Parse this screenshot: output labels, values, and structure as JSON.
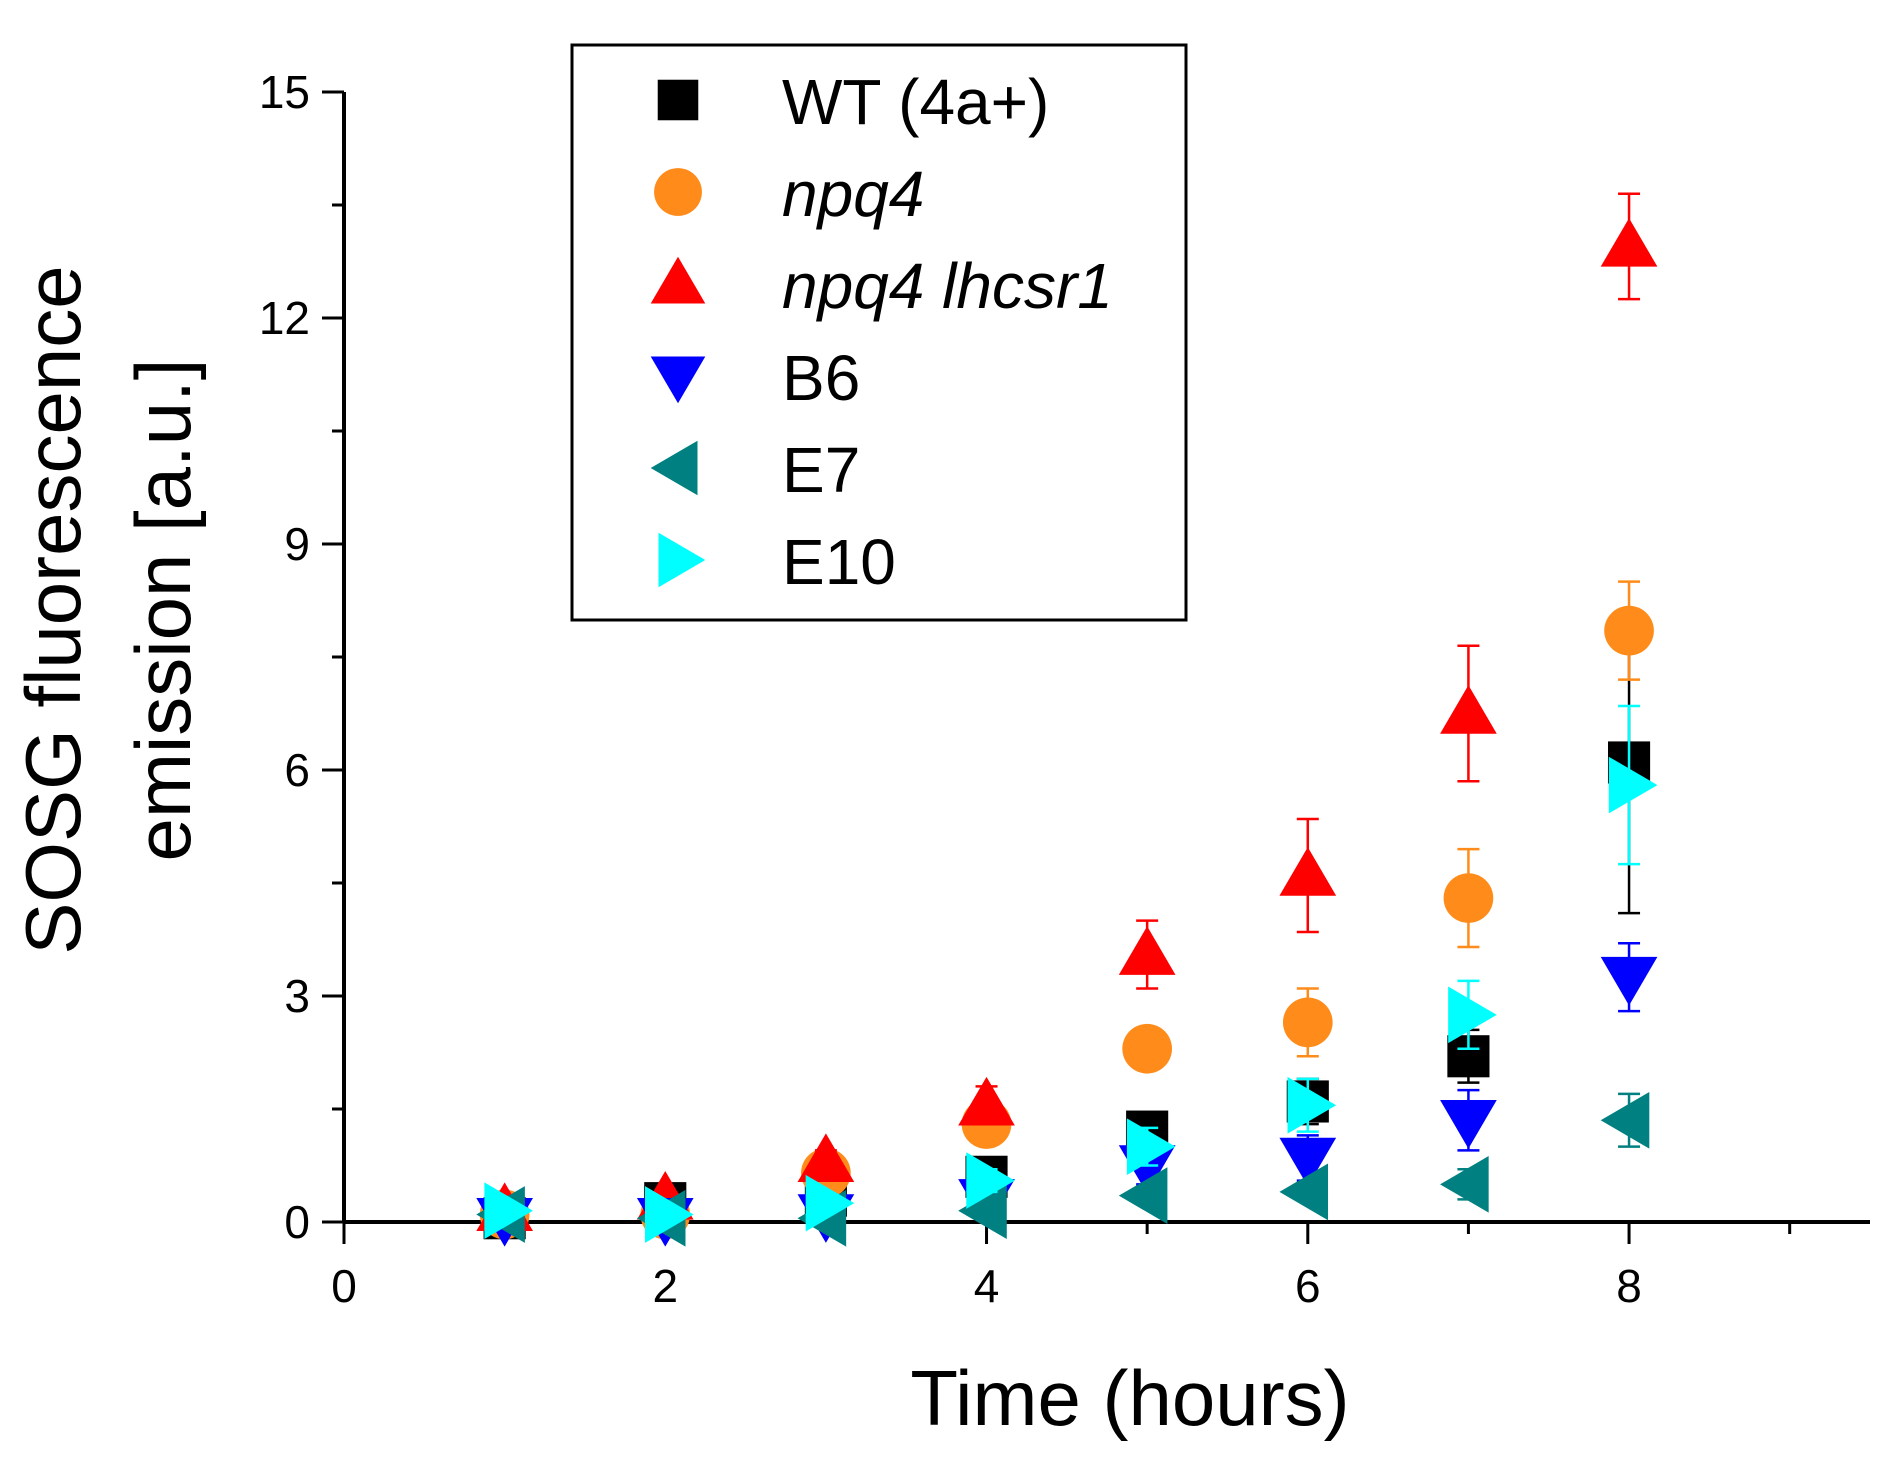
{
  "chart_data": {
    "type": "scatter",
    "title": "",
    "xlabel": "Time (hours)",
    "ylabel_lines": [
      "SOSG fluorescence",
      "emission [a.u.]"
    ],
    "xlim": [
      0,
      9.5
    ],
    "ylim": [
      0,
      15
    ],
    "x_ticks": [
      0,
      2,
      4,
      6,
      8
    ],
    "y_ticks": [
      0,
      3,
      6,
      9,
      12,
      15
    ],
    "x_tick_labels": [
      "0",
      "2",
      "4",
      "6",
      "8"
    ],
    "y_tick_labels": [
      "0",
      "3",
      "6",
      "9",
      "12",
      "15"
    ],
    "grid": false,
    "legend_position": "top-center",
    "x": [
      1,
      2,
      3,
      4,
      5,
      6,
      7,
      8
    ],
    "series": [
      {
        "name": "WT (4a+)",
        "italic": false,
        "marker": "square",
        "color": "#000000",
        "values": [
          0.05,
          0.25,
          0.35,
          0.6,
          1.2,
          1.6,
          2.2,
          6.1
        ],
        "errors": [
          0.05,
          0.05,
          0.1,
          0.15,
          0.2,
          0.3,
          0.35,
          2.0
        ]
      },
      {
        "name": "npq4",
        "italic": true,
        "marker": "circle",
        "color": "#FF8C1A",
        "values": [
          0.1,
          0.1,
          0.65,
          1.3,
          2.3,
          2.65,
          4.3,
          7.85
        ],
        "errors": [
          0.05,
          0.05,
          0.15,
          0.2,
          0.2,
          0.45,
          0.65,
          0.65
        ]
      },
      {
        "name": "npq4 lhcsr1",
        "italic": true,
        "marker": "triangle-up",
        "color": "#FF0000",
        "values": [
          0.15,
          0.3,
          0.8,
          1.55,
          3.55,
          4.6,
          6.75,
          12.95
        ],
        "errors": [
          0.1,
          0.05,
          0.15,
          0.25,
          0.45,
          0.75,
          0.9,
          0.7
        ]
      },
      {
        "name": "B6",
        "italic": false,
        "marker": "triangle-down",
        "color": "#0000FF",
        "values": [
          0.05,
          0.05,
          0.1,
          0.3,
          0.75,
          0.85,
          1.35,
          3.25
        ],
        "errors": [
          0.05,
          0.05,
          0.05,
          0.1,
          0.25,
          0.3,
          0.4,
          0.45
        ]
      },
      {
        "name": "E7",
        "italic": false,
        "marker": "triangle-left",
        "color": "#008080",
        "values": [
          0.1,
          0.05,
          0.05,
          0.15,
          0.35,
          0.4,
          0.5,
          1.35
        ],
        "errors": [
          0.05,
          0.05,
          0.05,
          0.05,
          0.1,
          0.1,
          0.2,
          0.35
        ]
      },
      {
        "name": "E10",
        "italic": false,
        "marker": "triangle-right",
        "color": "#00FFFF",
        "values": [
          0.15,
          0.1,
          0.25,
          0.55,
          1.0,
          1.55,
          2.75,
          5.8
        ],
        "errors": [
          0.05,
          0.05,
          0.1,
          0.15,
          0.25,
          0.35,
          0.45,
          1.05
        ]
      }
    ]
  }
}
